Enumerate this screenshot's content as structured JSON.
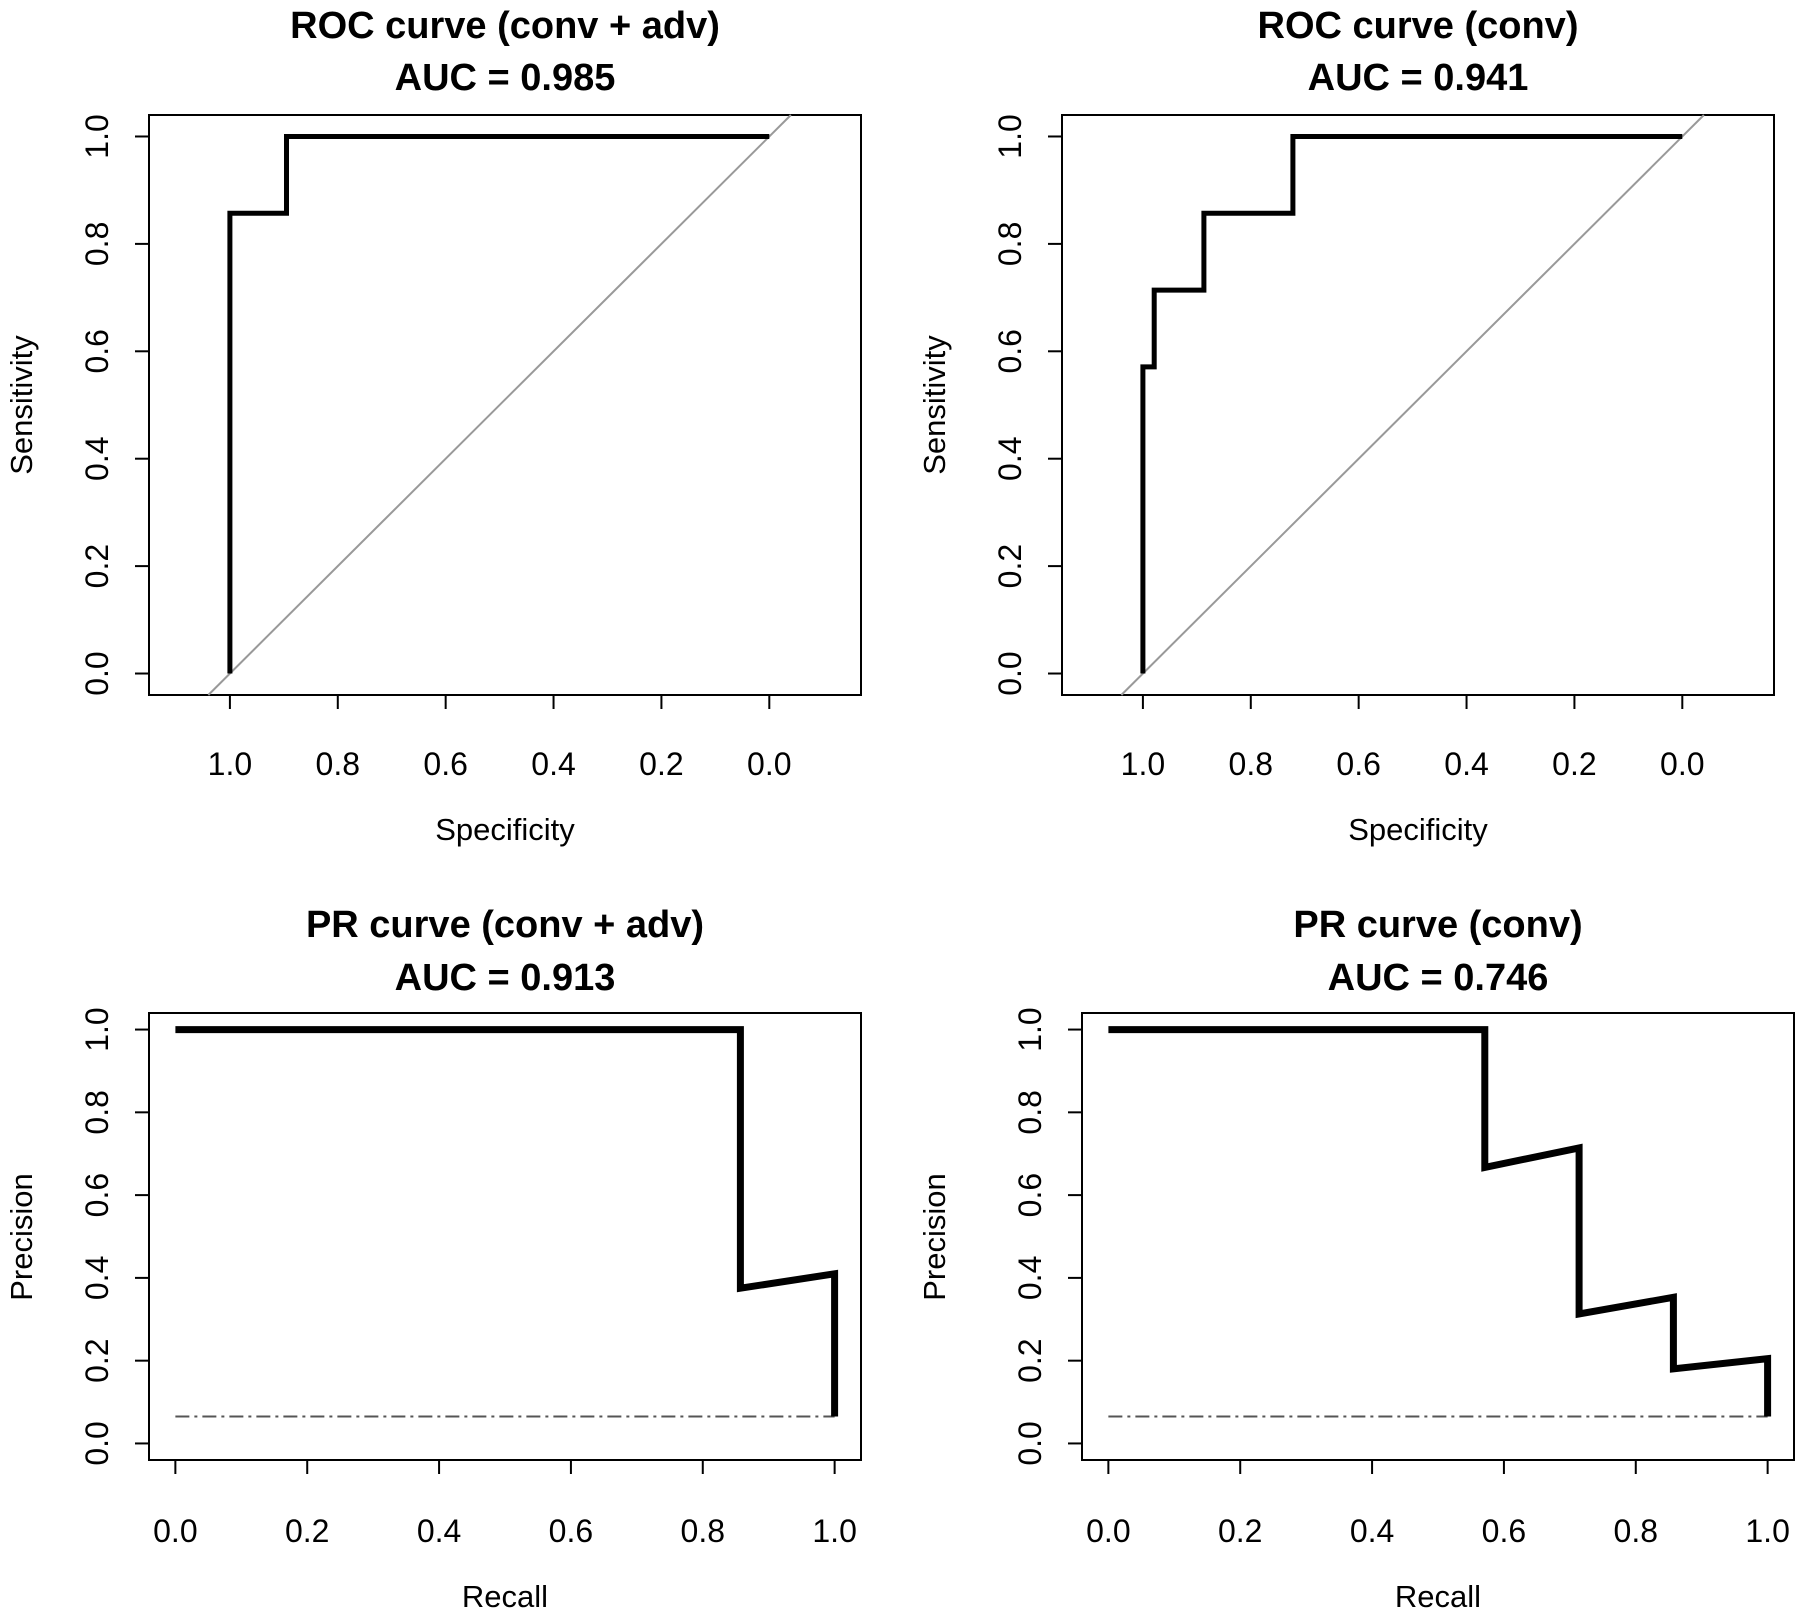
{
  "chart_data": [
    {
      "type": "line",
      "title": "ROC curve (conv + adv)",
      "subtitle": "AUC = 0.985",
      "xlabel": "Specificity",
      "ylabel": "Sensitivity",
      "x_reversed": true,
      "xlim": [
        1.15,
        -0.17
      ],
      "ylim": [
        -0.04,
        1.04
      ],
      "xticks": [
        1.0,
        0.8,
        0.6,
        0.4,
        0.2,
        0.0
      ],
      "xtick_labels": [
        "1.0",
        "0.8",
        "0.6",
        "0.4",
        "0.2",
        "0.0"
      ],
      "yticks": [
        0.0,
        0.2,
        0.4,
        0.6,
        0.8,
        1.0
      ],
      "ytick_labels": [
        "0.0",
        "0.2",
        "0.4",
        "0.6",
        "0.8",
        "1.0"
      ],
      "reference_line": "diagonal",
      "reference_color": "#999999",
      "grid": false,
      "series": [
        {
          "x": [
            1.0,
            1.0,
            0.895,
            0.895,
            0.0
          ],
          "y": [
            0.0,
            0.857,
            0.857,
            1.0,
            1.0
          ],
          "color": "#000000",
          "step": false
        }
      ]
    },
    {
      "type": "line",
      "title": "ROC curve (conv)",
      "subtitle": "AUC = 0.941",
      "xlabel": "Specificity",
      "ylabel": "Sensitivity",
      "x_reversed": true,
      "xlim": [
        1.15,
        -0.17
      ],
      "ylim": [
        -0.04,
        1.04
      ],
      "xticks": [
        1.0,
        0.8,
        0.6,
        0.4,
        0.2,
        0.0
      ],
      "xtick_labels": [
        "1.0",
        "0.8",
        "0.6",
        "0.4",
        "0.2",
        "0.0"
      ],
      "yticks": [
        0.0,
        0.2,
        0.4,
        0.6,
        0.8,
        1.0
      ],
      "ytick_labels": [
        "0.0",
        "0.2",
        "0.4",
        "0.6",
        "0.8",
        "1.0"
      ],
      "reference_line": "diagonal",
      "reference_color": "#999999",
      "grid": false,
      "series": [
        {
          "x": [
            1.0,
            1.0,
            0.979,
            0.979,
            0.887,
            0.887,
            0.722,
            0.722,
            0.0
          ],
          "y": [
            0.0,
            0.571,
            0.571,
            0.714,
            0.714,
            0.857,
            0.857,
            1.0,
            1.0
          ],
          "color": "#000000",
          "step": false
        }
      ]
    },
    {
      "type": "line",
      "title": "PR curve (conv + adv)",
      "subtitle": "AUC = 0.913",
      "xlabel": "Recall",
      "ylabel": "Precision",
      "x_reversed": false,
      "xlim": [
        -0.04,
        1.04
      ],
      "ylim": [
        -0.04,
        1.04
      ],
      "xticks": [
        0.0,
        0.2,
        0.4,
        0.6,
        0.8,
        1.0
      ],
      "xtick_labels": [
        "0.0",
        "0.2",
        "0.4",
        "0.6",
        "0.8",
        "1.0"
      ],
      "yticks": [
        0.0,
        0.2,
        0.4,
        0.6,
        0.8,
        1.0
      ],
      "ytick_labels": [
        "0.0",
        "0.2",
        "0.4",
        "0.6",
        "0.8",
        "1.0"
      ],
      "reference_line": "horizontal",
      "reference_y": 0.065,
      "reference_color": "#555555",
      "grid": false,
      "series": [
        {
          "x": [
            0.0,
            0.857,
            0.857,
            1.0,
            1.0
          ],
          "y": [
            1.0,
            1.0,
            0.375,
            0.41,
            0.065
          ],
          "color": "#000000",
          "step": false
        }
      ]
    },
    {
      "type": "line",
      "title": "PR curve (conv)",
      "subtitle": "AUC = 0.746",
      "xlabel": "Recall",
      "ylabel": "Precision",
      "x_reversed": false,
      "xlim": [
        -0.04,
        1.04
      ],
      "ylim": [
        -0.04,
        1.04
      ],
      "xticks": [
        0.0,
        0.2,
        0.4,
        0.6,
        0.8,
        1.0
      ],
      "xtick_labels": [
        "0.0",
        "0.2",
        "0.4",
        "0.6",
        "0.8",
        "1.0"
      ],
      "yticks": [
        0.0,
        0.2,
        0.4,
        0.6,
        0.8,
        1.0
      ],
      "ytick_labels": [
        "0.0",
        "0.2",
        "0.4",
        "0.6",
        "0.8",
        "1.0"
      ],
      "reference_line": "horizontal",
      "reference_y": 0.065,
      "reference_color": "#555555",
      "grid": false,
      "series": [
        {
          "x": [
            0.0,
            0.571,
            0.571,
            0.714,
            0.714,
            0.857,
            0.857,
            1.0,
            1.0
          ],
          "y": [
            1.0,
            1.0,
            0.667,
            0.714,
            0.313,
            0.353,
            0.18,
            0.205,
            0.065
          ],
          "color": "#000000",
          "step": false
        }
      ]
    }
  ]
}
